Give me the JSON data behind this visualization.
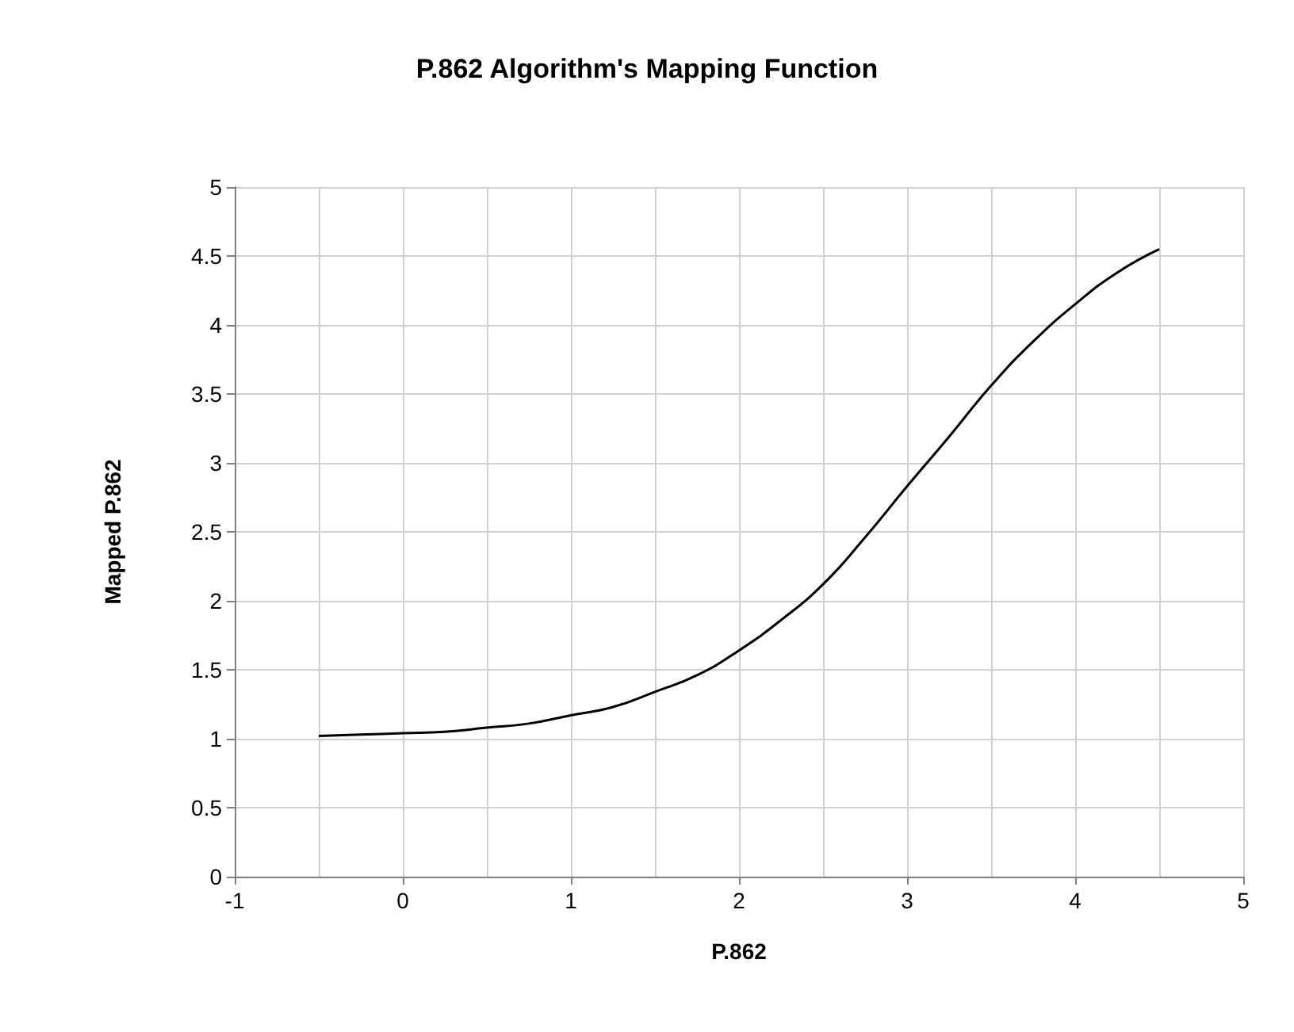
{
  "chart_data": {
    "type": "line",
    "title": "P.862 Algorithm's Mapping Function",
    "xlabel": "P.862",
    "ylabel": "Mapped P.862",
    "x": [
      -0.5,
      -0.25,
      0,
      0.25,
      0.5,
      0.75,
      1,
      1.25,
      1.5,
      1.75,
      2,
      2.25,
      2.5,
      2.75,
      3,
      3.25,
      3.5,
      3.75,
      4,
      4.25,
      4.5
    ],
    "series": [
      {
        "color": "#000000",
        "values": [
          1.02,
          1.03,
          1.04,
          1.05,
          1.08,
          1.11,
          1.17,
          1.23,
          1.34,
          1.46,
          1.64,
          1.86,
          2.12,
          2.46,
          2.83,
          3.19,
          3.56,
          3.88,
          4.15,
          4.38,
          4.55
        ]
      }
    ],
    "xlim": [
      -1,
      5
    ],
    "xticks": [
      -1,
      0,
      1,
      2,
      3,
      4,
      5
    ],
    "ylim": [
      0,
      5
    ],
    "yticks": [
      0,
      0.5,
      1,
      1.5,
      2,
      2.5,
      3,
      3.5,
      4,
      4.5,
      5
    ],
    "grid": true,
    "marker": "none",
    "line_style": "solid"
  }
}
